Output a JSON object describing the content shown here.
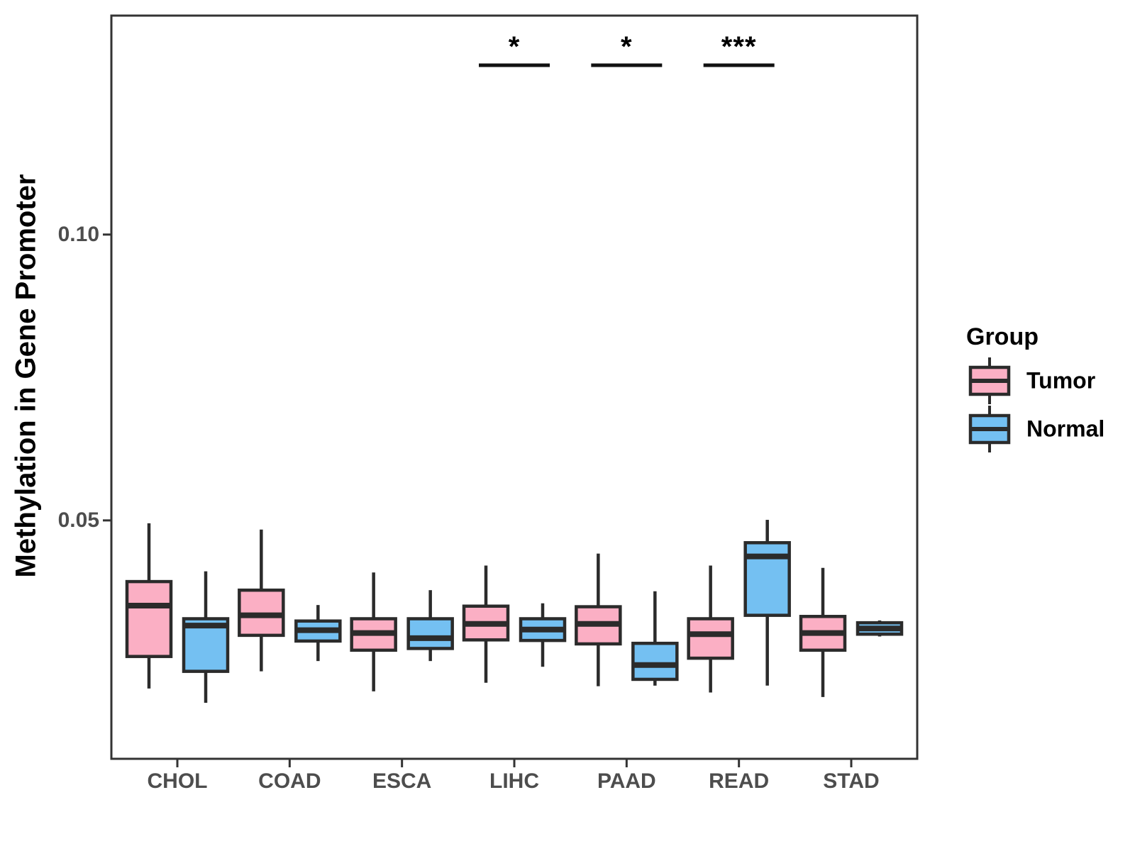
{
  "figure": {
    "y_axis": {
      "title": "Methylation in Gene Promoter",
      "ticks": [
        "0.10",
        "0.05"
      ]
    },
    "x_axis": {
      "categories": [
        "CHOL",
        "COAD",
        "ESCA",
        "LIHC",
        "PAAD",
        "READ",
        "STAD"
      ]
    },
    "legend": {
      "title": "Group",
      "items": [
        {
          "label": "Tumor",
          "color": "#FBAFC4"
        },
        {
          "label": "Normal",
          "color": "#74C0F2"
        }
      ]
    }
  },
  "chart_data": {
    "type": "boxplot",
    "title": "",
    "xlabel": "",
    "ylabel": "Methylation in Gene Promoter",
    "categories": [
      "CHOL",
      "COAD",
      "ESCA",
      "LIHC",
      "PAAD",
      "READ",
      "STAD"
    ],
    "yticks": [
      0.1,
      0.05
    ],
    "ytick_labels": [
      "0.10",
      "0.05"
    ],
    "ylim": [
      0.0083,
      0.1383
    ],
    "grid": false,
    "legend_position": "right",
    "series": [
      {
        "name": "Tumor",
        "color": "#FBAFC4",
        "boxes": [
          {
            "min": 0.0206,
            "q1": 0.0262,
            "median": 0.0351,
            "q3": 0.0393,
            "max": 0.0495
          },
          {
            "min": 0.0236,
            "q1": 0.0299,
            "median": 0.0334,
            "q3": 0.0378,
            "max": 0.0484
          },
          {
            "min": 0.0201,
            "q1": 0.0273,
            "median": 0.0303,
            "q3": 0.0328,
            "max": 0.0409
          },
          {
            "min": 0.0216,
            "q1": 0.0291,
            "median": 0.0319,
            "q3": 0.035,
            "max": 0.0421
          },
          {
            "min": 0.021,
            "q1": 0.0284,
            "median": 0.0319,
            "q3": 0.0349,
            "max": 0.0442
          },
          {
            "min": 0.0199,
            "q1": 0.0259,
            "median": 0.0301,
            "q3": 0.0328,
            "max": 0.0421
          },
          {
            "min": 0.0191,
            "q1": 0.0273,
            "median": 0.0303,
            "q3": 0.0332,
            "max": 0.0417
          }
        ]
      },
      {
        "name": "Normal",
        "color": "#74C0F2",
        "boxes": [
          {
            "min": 0.0181,
            "q1": 0.0236,
            "median": 0.0316,
            "q3": 0.0328,
            "max": 0.0411
          },
          {
            "min": 0.0254,
            "q1": 0.0289,
            "median": 0.0308,
            "q3": 0.0324,
            "max": 0.0352
          },
          {
            "min": 0.0254,
            "q1": 0.0276,
            "median": 0.0294,
            "q3": 0.0328,
            "max": 0.0378
          },
          {
            "min": 0.0244,
            "q1": 0.029,
            "median": 0.0309,
            "q3": 0.0328,
            "max": 0.0355
          },
          {
            "min": 0.0211,
            "q1": 0.0222,
            "median": 0.0247,
            "q3": 0.0285,
            "max": 0.0376
          },
          {
            "min": 0.0211,
            "q1": 0.0334,
            "median": 0.0437,
            "q3": 0.0461,
            "max": 0.0501
          },
          {
            "min": 0.0297,
            "q1": 0.0301,
            "median": 0.0311,
            "q3": 0.0321,
            "max": 0.0325
          }
        ]
      }
    ],
    "annotations": [
      {
        "category": "LIHC",
        "label": "*"
      },
      {
        "category": "PAAD",
        "label": "*"
      },
      {
        "category": "READ",
        "label": "***"
      }
    ],
    "style": {
      "box_border_color": "#2B2B2B",
      "median_color": "#2B2B2B",
      "whisker_color": "#2B2B2B",
      "panel_border_color": "#333333",
      "tick_color": "#333333",
      "tick_label_color": "#4D4D4D",
      "annotation_color": "#111111",
      "background": "#FFFFFF"
    }
  }
}
